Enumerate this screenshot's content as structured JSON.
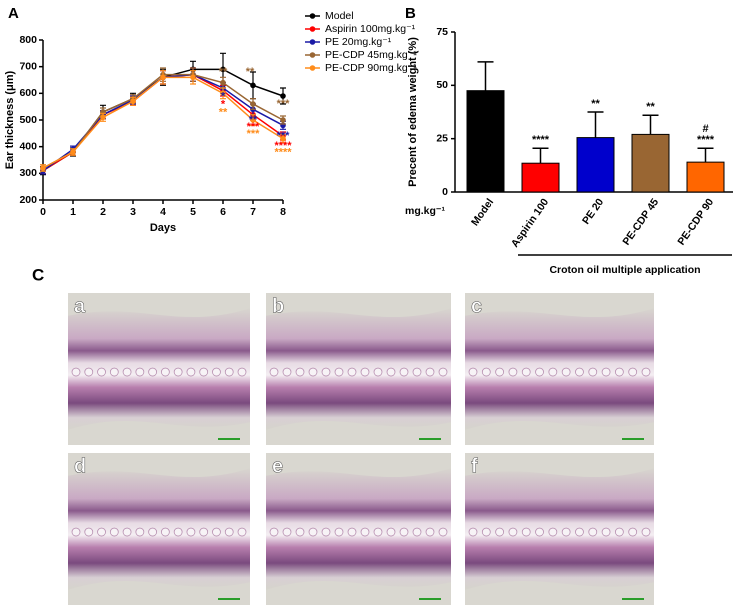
{
  "chart_data": [
    {
      "type": "line",
      "panel": "A",
      "xlabel": "Days",
      "ylabel": "Ear thickness (μm)",
      "x": [
        0,
        1,
        2,
        3,
        4,
        5,
        6,
        7,
        8
      ],
      "xlim": [
        0,
        8
      ],
      "xticks": [
        0,
        1,
        2,
        3,
        4,
        5,
        6,
        7,
        8
      ],
      "ylim": [
        200,
        800
      ],
      "yticks": [
        200,
        300,
        400,
        500,
        600,
        700,
        800
      ],
      "series": [
        {
          "name": "Model",
          "color": "#000000",
          "values": [
            310,
            380,
            530,
            580,
            660,
            690,
            690,
            630,
            590
          ],
          "errors": [
            15,
            15,
            25,
            20,
            30,
            30,
            60,
            50,
            30
          ]
        },
        {
          "name": "Aspirin 100mg.kg⁻¹",
          "color": "#ff0000",
          "values": [
            310,
            380,
            520,
            570,
            660,
            670,
            610,
            520,
            440
          ],
          "errors": [
            12,
            12,
            15,
            15,
            25,
            25,
            20,
            20,
            15
          ]
        },
        {
          "name": "PE 20mg.kg⁻¹",
          "color": "#1a1aa6",
          "values": [
            310,
            390,
            520,
            575,
            660,
            670,
            620,
            540,
            480
          ],
          "errors": [
            12,
            12,
            15,
            15,
            25,
            25,
            20,
            20,
            15
          ]
        },
        {
          "name": "PE-CDP 45mg.kg⁻¹",
          "color": "#996633",
          "values": [
            320,
            380,
            530,
            580,
            670,
            670,
            640,
            560,
            500
          ],
          "errors": [
            12,
            12,
            15,
            15,
            25,
            25,
            20,
            20,
            15
          ]
        },
        {
          "name": "PE-CDP 90mg.kg⁻¹",
          "color": "#ff8c1a",
          "values": [
            320,
            380,
            510,
            570,
            660,
            660,
            600,
            500,
            430
          ],
          "errors": [
            12,
            12,
            15,
            15,
            25,
            25,
            20,
            20,
            15
          ]
        }
      ],
      "annotations": [
        {
          "text": "**",
          "x": 6,
          "y": 680,
          "color": "#996633"
        },
        {
          "text": "*",
          "x": 6,
          "y": 588,
          "color": "#1a1aa6"
        },
        {
          "text": "*",
          "x": 6,
          "y": 558,
          "color": "#ff0000"
        },
        {
          "text": "**",
          "x": 6,
          "y": 528,
          "color": "#ff8c1a"
        },
        {
          "text": "**",
          "x": 6.9,
          "y": 680,
          "color": "#996633"
        },
        {
          "text": "**",
          "x": 7,
          "y": 500,
          "color": "#1a1aa6"
        },
        {
          "text": "***",
          "x": 7,
          "y": 474,
          "color": "#ff0000"
        },
        {
          "text": "***",
          "x": 7,
          "y": 448,
          "color": "#ff8c1a"
        },
        {
          "text": "***",
          "x": 8,
          "y": 560,
          "color": "#996633"
        },
        {
          "text": "***",
          "x": 8,
          "y": 440,
          "color": "#1a1aa6"
        },
        {
          "text": "****",
          "x": 8,
          "y": 403,
          "color": "#ff0000"
        },
        {
          "text": "****",
          "x": 8,
          "y": 377,
          "color": "#ff8c1a"
        }
      ]
    },
    {
      "type": "bar",
      "panel": "B",
      "ylabel": "Precent of edema weight (%)",
      "unit_label": "mg.kg⁻¹",
      "group_label": "Croton oil multiple application",
      "categories": [
        "Model",
        "Aspirin 100",
        "PE 20",
        "PE-CDP 45",
        "PE-CDP 90"
      ],
      "values": [
        47.5,
        13.5,
        25.5,
        27,
        14
      ],
      "errors": [
        13.5,
        7,
        12,
        9,
        6.5
      ],
      "colors": [
        "#000000",
        "#ff0000",
        "#0000cc",
        "#996633",
        "#ff6600"
      ],
      "significance": [
        null,
        "****",
        "**",
        "**",
        "****"
      ],
      "extra_marks": [
        null,
        null,
        null,
        null,
        "#"
      ],
      "ylim": [
        0,
        75
      ],
      "yticks": [
        0,
        25,
        50,
        75
      ]
    }
  ],
  "panel_c": {
    "label": "C",
    "images": [
      "a",
      "b",
      "c",
      "d",
      "e",
      "f"
    ]
  }
}
